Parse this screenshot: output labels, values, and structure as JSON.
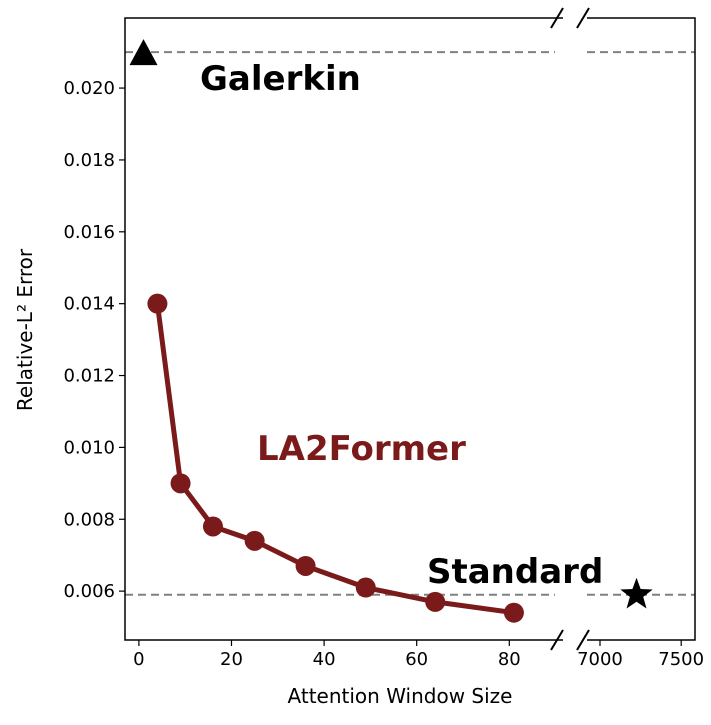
{
  "chart_data": {
    "type": "line",
    "xlabel": "Attention Window Size",
    "ylabel": "Relative-L² Error",
    "xlim": [
      -3,
      91.6
    ],
    "xticks": [
      0,
      20,
      40,
      60,
      80
    ],
    "x2lim": [
      6920,
      7585
    ],
    "x2ticks": [
      7000,
      7500
    ],
    "ylim": [
      0.00464,
      0.02195
    ],
    "yticks": [
      0.006,
      0.008,
      {
        "value": 0.01,
        "label": "0.010"
      },
      0.012,
      0.014,
      0.016,
      0.018,
      {
        "value": 0.02,
        "label": "0.020"
      }
    ],
    "series": [
      {
        "name": "LA2Former",
        "color": "#7b1a1a",
        "marker": "circle",
        "x": [
          4,
          9,
          16,
          25,
          36,
          49,
          64,
          81
        ],
        "values": [
          0.014,
          0.009,
          0.0078,
          0.0074,
          0.0067,
          0.0061,
          0.0057,
          0.0054
        ]
      },
      {
        "name": "Galerkin",
        "color": "#000000",
        "marker": "triangle",
        "reference_line": true,
        "x": [
          1
        ],
        "values": [
          0.021
        ]
      },
      {
        "name": "Standard",
        "color": "#000000",
        "marker": "star",
        "reference_line": true,
        "x": [
          7225
        ],
        "values": [
          0.0059
        ]
      }
    ]
  }
}
